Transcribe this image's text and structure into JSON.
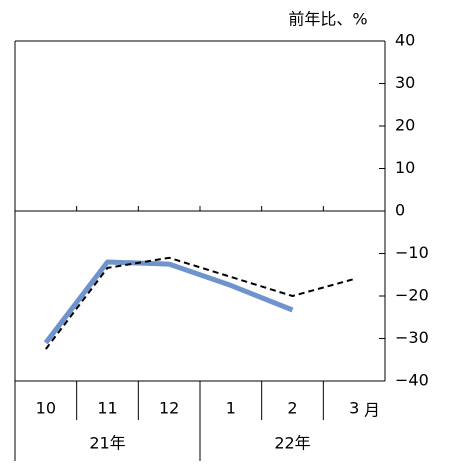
{
  "chart_data": {
    "type": "line",
    "y_label": "前年比、%",
    "x_unit": "月",
    "categories": [
      "10",
      "11",
      "12",
      "1",
      "2",
      "3"
    ],
    "x_groups": [
      {
        "label": "21年",
        "span": 3
      },
      {
        "label": "22年",
        "span": 3
      }
    ],
    "series": [
      {
        "color": "#6f93cc",
        "dash": false,
        "values": [
          -31,
          -12,
          -12.5,
          -17.5,
          -23.3,
          null
        ]
      },
      {
        "color": "#000000",
        "dash": true,
        "values": [
          -32.5,
          -13.4,
          -11,
          -15.5,
          -20,
          -16
        ]
      }
    ],
    "ylim": [
      -40,
      40
    ],
    "yticks": [
      {
        "value": 40,
        "label": "40"
      },
      30,
      20,
      10,
      0,
      {
        "value": -10,
        "label": "−10"
      },
      {
        "value": -20,
        "label": "−20"
      },
      {
        "value": -30,
        "label": "−30"
      },
      {
        "value": -40,
        "label": "−40"
      }
    ],
    "zero_line": true
  }
}
